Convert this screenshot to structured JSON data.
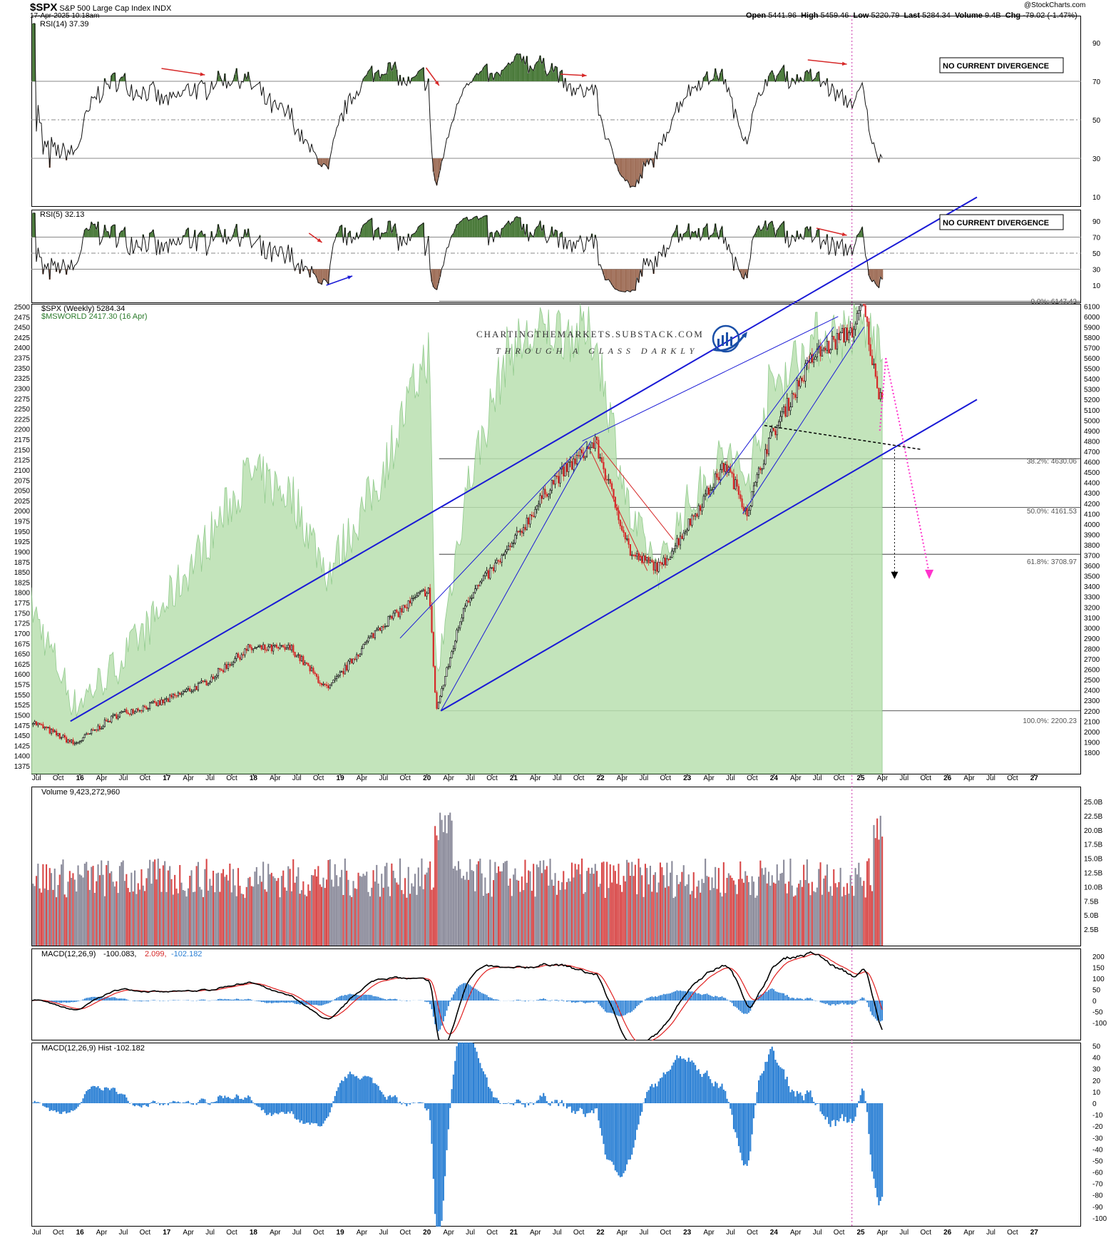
{
  "header": {
    "symbol": "$SPX",
    "name": "S&P 500 Large Cap Index",
    "exchange": "INDX",
    "date": "17-Apr-2025 10:18am",
    "open_label": "Open",
    "open": "5441.96",
    "high_label": "High",
    "high": "5459.46",
    "low_label": "Low",
    "low": "5220.79",
    "last_label": "Last",
    "last": "5284.34",
    "volume_label": "Volume",
    "volume": "9.4B",
    "chg_label": "Chg",
    "chg": "-79.02 (-1.47%)",
    "source": "@StockCharts.com"
  },
  "colors": {
    "up": "#000000",
    "down": "#d62828",
    "channel": "#1a1ad6",
    "area": "#b9e0b0",
    "area_line": "#7fc27a",
    "projection_pink": "#ff33cc",
    "macd_signal": "#e02020",
    "hist": "#2a7fd4",
    "overbought": "#4a7a3a",
    "oversold": "#a0705a"
  },
  "watermark": {
    "line1": "CHARTINGTHEMARKETS.SUBSTACK.COM",
    "line2": "THROUGH A GLASS DARKLY"
  },
  "rsi14": {
    "legend": "RSI(14) 37.39",
    "note": "NO CURRENT DIVERGENCE",
    "ticks": [
      "90",
      "70",
      "50",
      "30",
      "10"
    ]
  },
  "rsi5": {
    "legend": "RSI(5) 32.13",
    "note": "NO CURRENT DIVERGENCE",
    "ticks": [
      "90",
      "70",
      "50",
      "30",
      "10"
    ]
  },
  "price": {
    "legend1": "$SPX (Weekly) 5284.34",
    "legend2": "$MSWORLD 2417.30 (16 Apr)",
    "left_ticks": [
      "2500",
      "2475",
      "2450",
      "2425",
      "2400",
      "2375",
      "2350",
      "2325",
      "2300",
      "2275",
      "2250",
      "2225",
      "2200",
      "2175",
      "2150",
      "2125",
      "2100",
      "2075",
      "2050",
      "2025",
      "2000",
      "1975",
      "1950",
      "1925",
      "1900",
      "1875",
      "1850",
      "1825",
      "1800",
      "1775",
      "1750",
      "1725",
      "1700",
      "1675",
      "1650",
      "1625",
      "1600",
      "1575",
      "1550",
      "1525",
      "1500",
      "1475",
      "1450",
      "1425",
      "1400",
      "1375"
    ],
    "right_ticks": [
      "6100",
      "6000",
      "5900",
      "5800",
      "5700",
      "5600",
      "5500",
      "5400",
      "5300",
      "5200",
      "5100",
      "5000",
      "4900",
      "4800",
      "4700",
      "4600",
      "4500",
      "4400",
      "4300",
      "4200",
      "4100",
      "4000",
      "3900",
      "3800",
      "3700",
      "3600",
      "3500",
      "3400",
      "3300",
      "3200",
      "3100",
      "3000",
      "2900",
      "2800",
      "2700",
      "2600",
      "2500",
      "2400",
      "2300",
      "2200",
      "2100",
      "2000",
      "1900",
      "1800"
    ],
    "fib": [
      {
        "label": "0.0%: 6147.43"
      },
      {
        "label": "38.2%: 4630.06"
      },
      {
        "label": "50.0%: 4161.53"
      },
      {
        "label": "61.8%: 3708.97"
      },
      {
        "label": "100.0%: 2200.23"
      }
    ]
  },
  "volume": {
    "legend": "Volume 9,423,272,960",
    "ticks": [
      "25.0B",
      "22.5B",
      "20.0B",
      "17.5B",
      "15.0B",
      "12.5B",
      "10.0B",
      "7.5B",
      "5.0B",
      "2.5B"
    ]
  },
  "macd": {
    "legend_name": "MACD(12,26,9)",
    "v1": "-100.083,",
    "v2": "2.099,",
    "v3": "-102.182",
    "ticks": [
      "200",
      "150",
      "100",
      "50",
      "0",
      "-50",
      "-100"
    ]
  },
  "hist": {
    "legend": "MACD(12,26,9) Hist -102.182",
    "ticks": [
      "50",
      "40",
      "30",
      "20",
      "10",
      "0",
      "-10",
      "-20",
      "-30",
      "-40",
      "-50",
      "-60",
      "-70",
      "-80",
      "-90",
      "-100"
    ]
  },
  "x_labels": [
    "Jul",
    "Oct",
    "16",
    "Apr",
    "Jul",
    "Oct",
    "17",
    "Apr",
    "Jul",
    "Oct",
    "18",
    "Apr",
    "Jul",
    "Oct",
    "19",
    "Apr",
    "Jul",
    "Oct",
    "20",
    "Apr",
    "Jul",
    "Oct",
    "21",
    "Apr",
    "Jul",
    "Oct",
    "22",
    "Apr",
    "Jul",
    "Oct",
    "23",
    "Apr",
    "Jul",
    "Oct",
    "24",
    "Apr",
    "Jul",
    "Oct",
    "25",
    "Apr",
    "Jul",
    "Oct",
    "26",
    "Apr",
    "Jul",
    "Oct",
    "27"
  ],
  "chart_data": {
    "type": "line",
    "title": "$SPX S&P 500 Large Cap Index INDX",
    "interval": "weekly",
    "x": [
      "2015-07",
      "2016-01",
      "2016-07",
      "2017-01",
      "2017-07",
      "2018-01",
      "2018-07",
      "2018-12",
      "2019-07",
      "2020-02",
      "2020-03",
      "2020-07",
      "2021-01",
      "2021-07",
      "2022-01",
      "2022-06",
      "2022-10",
      "2023-01",
      "2023-07",
      "2023-10",
      "2024-01",
      "2024-07",
      "2025-01",
      "2025-02",
      "2025-04"
    ],
    "series": [
      {
        "name": "$SPX (Weekly)",
        "values": [
          2100,
          1880,
          2170,
          2280,
          2470,
          2800,
          2800,
          2400,
          3000,
          3380,
          2200,
          3250,
          3750,
          4400,
          4790,
          3700,
          3580,
          3900,
          4580,
          4120,
          4800,
          5600,
          5900,
          6147,
          5284
        ]
      },
      {
        "name": "$MSWORLD",
        "values": [
          1780,
          1540,
          1640,
          1770,
          1930,
          2100,
          2050,
          1860,
          2080,
          2400,
          1600,
          2050,
          2400,
          2450,
          2430,
          1980,
          1870,
          2000,
          2150,
          2080,
          2300,
          2420,
          2450,
          2460,
          2417
        ]
      }
    ],
    "ylim_spx": [
      1800,
      6150
    ],
    "ylim_msworld": [
      1375,
      2500
    ],
    "legend": "top-left"
  }
}
